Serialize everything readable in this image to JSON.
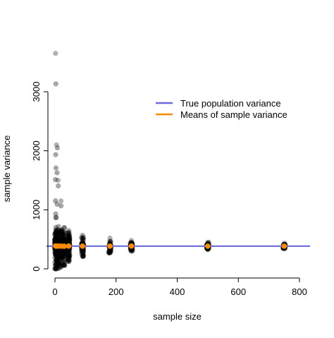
{
  "chart_data": {
    "type": "scatter",
    "title": "",
    "xlabel": "sample size",
    "ylabel": "sample variance",
    "xlim": [
      0,
      840
    ],
    "ylim": [
      0,
      3700
    ],
    "x_ticks": [
      0,
      200,
      400,
      600,
      800
    ],
    "y_ticks": [
      0,
      1000,
      2000,
      3000
    ],
    "grid": false,
    "legend_position": "top-right",
    "true_population_variance": 385,
    "sample_sizes": [
      2,
      5,
      10,
      20,
      30,
      45,
      90,
      180,
      250,
      500,
      750
    ],
    "sample_variance_ranges": [
      {
        "n": 2,
        "min": 0,
        "max": 3650
      },
      {
        "n": 5,
        "min": 0,
        "max": 2100
      },
      {
        "n": 10,
        "min": 10,
        "max": 1500
      },
      {
        "n": 20,
        "min": 30,
        "max": 1150
      },
      {
        "n": 30,
        "min": 60,
        "max": 700
      },
      {
        "n": 45,
        "min": 120,
        "max": 650
      },
      {
        "n": 90,
        "min": 210,
        "max": 570
      },
      {
        "n": 180,
        "min": 270,
        "max": 520
      },
      {
        "n": 250,
        "min": 300,
        "max": 480
      },
      {
        "n": 500,
        "min": 330,
        "max": 450
      },
      {
        "n": 750,
        "min": 345,
        "max": 435
      }
    ],
    "series": [
      {
        "name": "True population variance",
        "color": "#6b6bdd",
        "kind": "hline",
        "value": 385
      },
      {
        "name": "Means of sample variance",
        "color": "#ff8c00",
        "kind": "points",
        "x": [
          2,
          5,
          10,
          20,
          30,
          45,
          90,
          180,
          250,
          500,
          750
        ],
        "y": [
          387,
          384,
          386,
          385,
          383,
          386,
          385,
          384,
          386,
          385,
          384
        ]
      }
    ],
    "colors": {
      "points": "#000000",
      "true_line": "#6b6bdd",
      "means": "#ff8c00"
    }
  }
}
